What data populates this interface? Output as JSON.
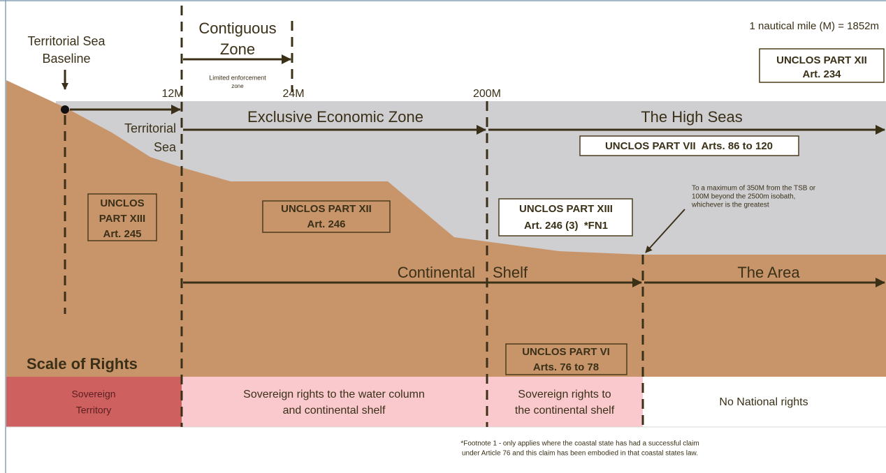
{
  "labels": {
    "baseline": [
      "Territorial Sea",
      "Baseline"
    ],
    "contiguous": [
      "Contiguous",
      "Zone"
    ],
    "limited": [
      "Limited enforcement",
      "zone"
    ],
    "m12": "12M",
    "m24": "24M",
    "m200": "200M",
    "scale_note": "1 nautical mile (M) = 1852m",
    "eez": "Exclusive Economic Zone",
    "high_seas": "The High Seas",
    "territorial": [
      "Territorial",
      "Sea"
    ],
    "continental": "Continental",
    "shelf": "Shelf",
    "area": "The Area",
    "scale_of_rights": "Scale of Rights"
  },
  "boxes": {
    "art234": [
      "UNCLOS PART XII",
      "Art. 234"
    ],
    "part7": [
      "UNCLOS PART VII  Arts. 86 to 120"
    ],
    "art245": [
      "UNCLOS",
      "PART XIII",
      "Art. 245"
    ],
    "art246": [
      "UNCLOS PART XII",
      "Art. 246"
    ],
    "art246_3": [
      "UNCLOS PART XIII",
      "Art. 246 (3)  *FN1"
    ],
    "part6": [
      "UNCLOS PART VI",
      "Arts. 76 to 78"
    ]
  },
  "note": [
    "To a maximum of 350M from the TSB or",
    "100M beyond the 2500m isobath,",
    "whichever is the greatest"
  ],
  "rights": [
    [
      "Sovereign",
      "Territory"
    ],
    [
      "Sovereign rights to the water column",
      "and continental shelf"
    ],
    [
      "Sovereign rights to",
      "the continental shelf"
    ],
    [
      "No National rights"
    ]
  ],
  "footnote": [
    "*Footnote 1 - only applies where the coastal state has had a successful claim",
    "under Article 76 and this claim has been embodied in that coastal states law."
  ]
}
